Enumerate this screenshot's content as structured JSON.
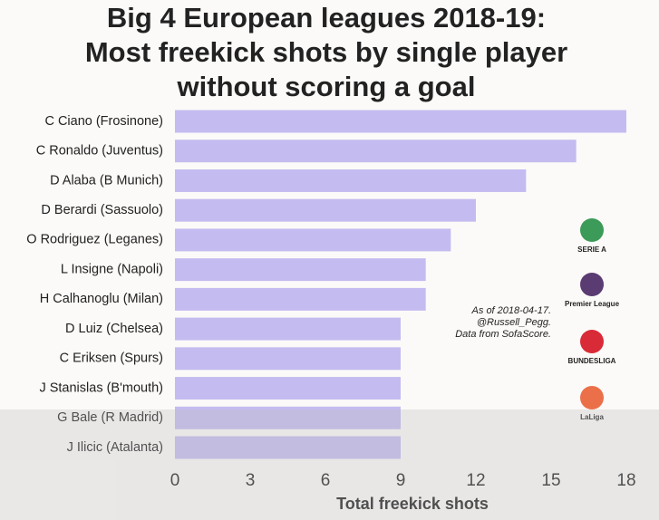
{
  "chart_data": {
    "type": "hbar",
    "title": [
      "Big 4 European leagues 2018-19:",
      "Most freekick shots by single player",
      "without scoring a goal"
    ],
    "categories": [
      "C Ciano (Frosinone)",
      "C Ronaldo (Juventus)",
      "D Alaba (B Munich)",
      "D Berardi (Sassuolo)",
      "O Rodriguez (Leganes)",
      "L Insigne (Napoli)",
      "H Calhanoglu (Milan)",
      "D Luiz (Chelsea)",
      "C Eriksen (Spurs)",
      "J Stanislas (B'mouth)",
      "G Bale (R Madrid)",
      "J Ilicic (Atalanta)"
    ],
    "values": [
      18,
      16,
      14,
      12,
      11,
      10,
      10,
      9,
      9,
      9,
      9,
      9
    ],
    "color": "#c4bcf0",
    "xlim": [
      0,
      18
    ],
    "xticks": [
      0,
      3,
      6,
      9,
      12,
      15,
      18
    ],
    "xlabel": "Total freekick shots",
    "annotation": [
      "As of 2018-04-17.",
      "@Russell_Pegg.",
      "Data from SofaScore."
    ],
    "logos": [
      "SERIE A",
      "Premier League",
      "BUNDESLIGA",
      "LaLiga"
    ]
  }
}
